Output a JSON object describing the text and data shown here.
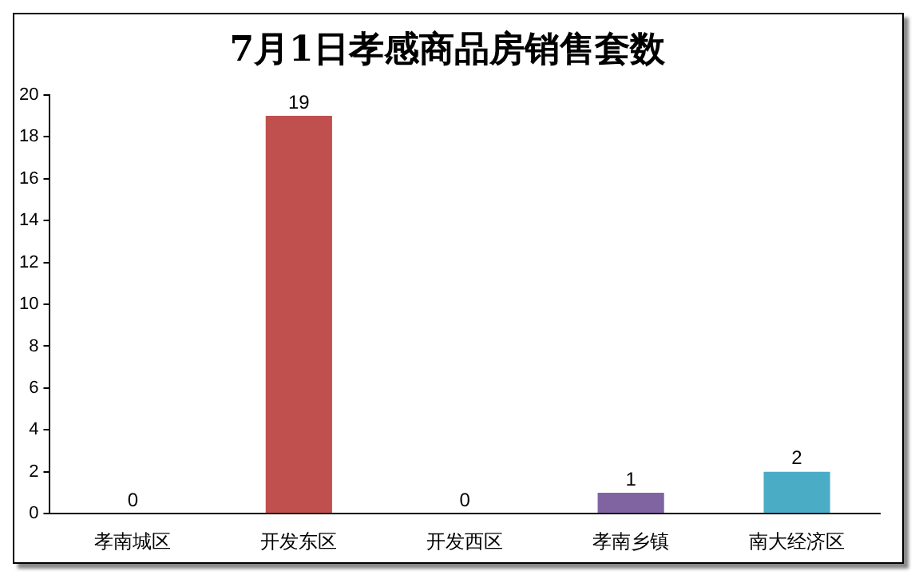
{
  "chart_data": {
    "type": "bar",
    "title": "7月1日孝感商品房销售套数",
    "categories": [
      "孝南城区",
      "开发东区",
      "开发西区",
      "孝南乡镇",
      "南大经济区"
    ],
    "values": [
      0,
      19,
      0,
      1,
      2
    ],
    "colors": [
      "#4f81bd",
      "#c0504d",
      "#9bbb59",
      "#8064a2",
      "#4bacc6"
    ],
    "ylim": [
      0,
      20
    ],
    "yticks": [
      0,
      2,
      4,
      6,
      8,
      10,
      12,
      14,
      16,
      18,
      20
    ],
    "data_labels": true
  }
}
